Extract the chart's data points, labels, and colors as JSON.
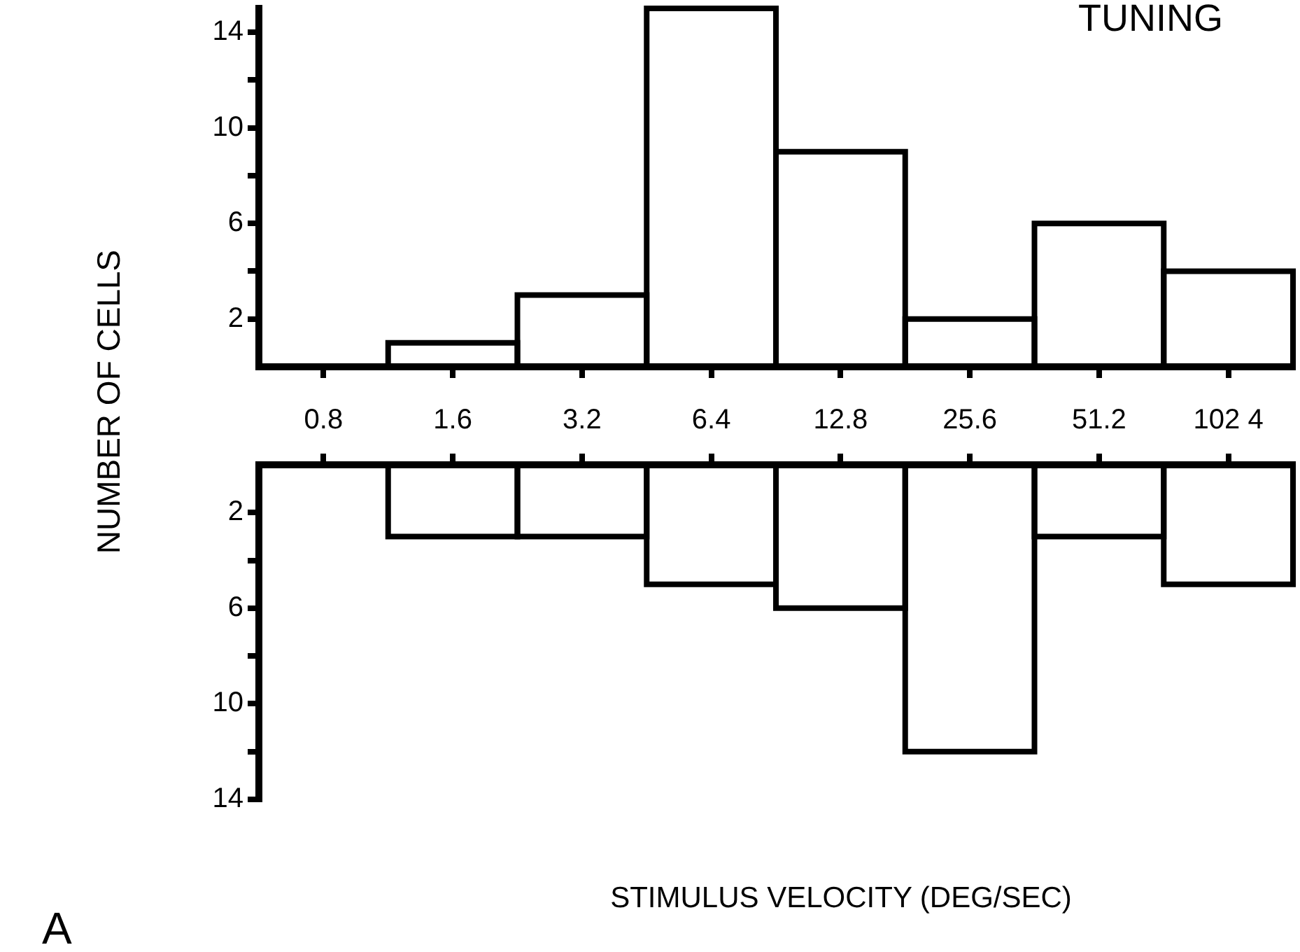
{
  "chart_data": [
    {
      "type": "bar",
      "title": "TUNING",
      "ylabel": "NUMBER OF CELLS",
      "categories": [
        null,
        null,
        null,
        null,
        null,
        null,
        null,
        null
      ],
      "values": [
        0,
        1,
        3,
        15,
        9,
        2,
        6,
        4
      ],
      "color": "#000000",
      "ylim": [
        0,
        15
      ],
      "yticks": [
        2,
        {
          "value": 4,
          "label": null
        },
        6,
        {
          "value": 8,
          "label": null
        },
        10,
        {
          "value": 12,
          "label": null
        },
        14
      ]
    },
    {
      "type": "bar",
      "xlabel": "STIMULUS VELOCITY (DEG/SEC)",
      "annotations": [
        "A"
      ],
      "categories": [
        "0.8",
        "1.6",
        "3.2",
        "6.4",
        "12.8",
        "25.6",
        "51.2",
        "102 4"
      ],
      "values": [
        0,
        3,
        3,
        5,
        6,
        12,
        3,
        5
      ],
      "color": "#000000",
      "ylim": [
        14,
        0
      ],
      "yticks": [
        2,
        {
          "value": 4,
          "label": null
        },
        6,
        {
          "value": 8,
          "label": null
        },
        10,
        {
          "value": 12,
          "label": null
        },
        14
      ]
    }
  ]
}
